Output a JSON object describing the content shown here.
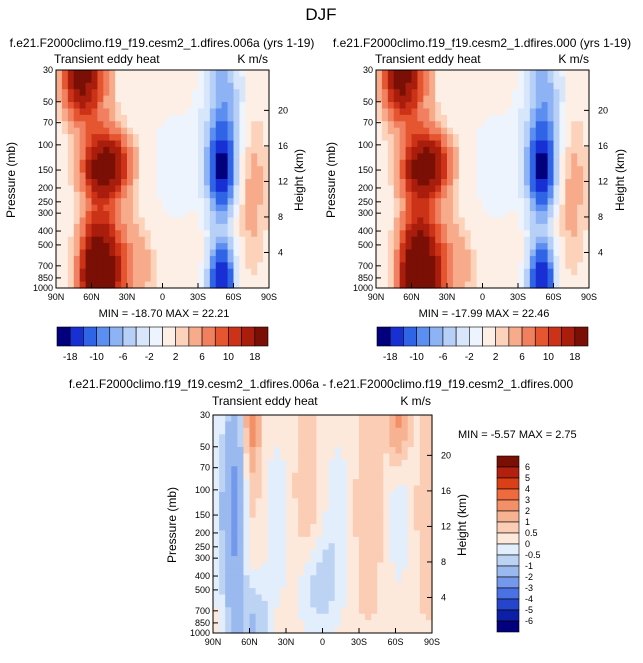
{
  "title": "DJF",
  "chart_data": [
    {
      "type": "heatmap",
      "title": "f.e21.F2000climo.f19_f19.cesm2_1.dfires.006a (yrs 1-19)",
      "variable": "Transient eddy heat",
      "units": "K m/s",
      "ylabel": "Pressure (mb)",
      "y2label": "Height (km)",
      "x_ticks": [
        "90N",
        "60N",
        "30N",
        "0",
        "30S",
        "60S",
        "90S"
      ],
      "y_ticks": [
        "30",
        "50",
        "70",
        "100",
        "150",
        "200",
        "250",
        "300",
        "400",
        "500",
        "700",
        "850",
        "1000"
      ],
      "y2_ticks": [
        "20",
        "16",
        "12",
        "8",
        "4"
      ],
      "min": -18.7,
      "max": 22.21,
      "minmax_label": "MIN = -18.70  MAX =  22.21"
    },
    {
      "type": "heatmap",
      "title": "f.e21.F2000climo.f19_f19.cesm2_1.dfires.000 (yrs 1-19)",
      "variable": "Transient eddy heat",
      "units": "K m/s",
      "ylabel": "Pressure (mb)",
      "y2label": "Height (km)",
      "x_ticks": [
        "90N",
        "60N",
        "30N",
        "0",
        "30S",
        "60S",
        "90S"
      ],
      "y_ticks": [
        "30",
        "50",
        "70",
        "100",
        "150",
        "200",
        "250",
        "300",
        "400",
        "500",
        "700",
        "850",
        "1000"
      ],
      "y2_ticks": [
        "20",
        "16",
        "12",
        "8",
        "4"
      ],
      "min": -17.99,
      "max": 22.46,
      "minmax_label": "MIN = -17.99  MAX =  22.46"
    },
    {
      "type": "heatmap",
      "title": "f.e21.F2000climo.f19_f19.cesm2_1.dfires.006a - f.e21.F2000climo.f19_f19.cesm2_1.dfires.000",
      "variable": "Transient eddy heat",
      "units": "K m/s",
      "ylabel": "Pressure (mb)",
      "y2label": "Height (km)",
      "x_ticks": [
        "90N",
        "60N",
        "30N",
        "0",
        "30S",
        "60S",
        "90S"
      ],
      "y_ticks": [
        "30",
        "50",
        "70",
        "100",
        "150",
        "200",
        "250",
        "300",
        "400",
        "500",
        "700",
        "850",
        "1000"
      ],
      "y2_ticks": [
        "20",
        "16",
        "12",
        "8",
        "4"
      ],
      "min": -5.57,
      "max": 2.75,
      "minmax_label": "MIN =  -5.57  MAX =   2.75"
    }
  ],
  "colorbar_top": {
    "labels": [
      "-18",
      "-10",
      "-6",
      "-2",
      "2",
      "6",
      "10",
      "18"
    ],
    "colors": [
      "#02007d",
      "#1830d3",
      "#3064e6",
      "#5c8ef1",
      "#8db3f5",
      "#b7d0f8",
      "#d8e6fb",
      "#eef4fd",
      "#fdefe6",
      "#fcd2bb",
      "#f7ab8a",
      "#f08060",
      "#e5552f",
      "#cc3218",
      "#a81d0c",
      "#7a0f05"
    ]
  },
  "colorbar_diff": {
    "labels": [
      "6",
      "5",
      "4",
      "3",
      "2",
      "1",
      "0.5",
      "0",
      "-0.5",
      "-1",
      "-2",
      "-3",
      "-4",
      "-5",
      "-6"
    ],
    "colors": [
      "#7a0f05",
      "#b3200f",
      "#da4018",
      "#ef6a3c",
      "#f49068",
      "#f7b291",
      "#facdb4",
      "#fde9dc",
      "#e2eefb",
      "#bcd3f4",
      "#9ab9ef",
      "#7499ec",
      "#4a72e5",
      "#2546cc",
      "#0c1fa6",
      "#02007d"
    ]
  }
}
